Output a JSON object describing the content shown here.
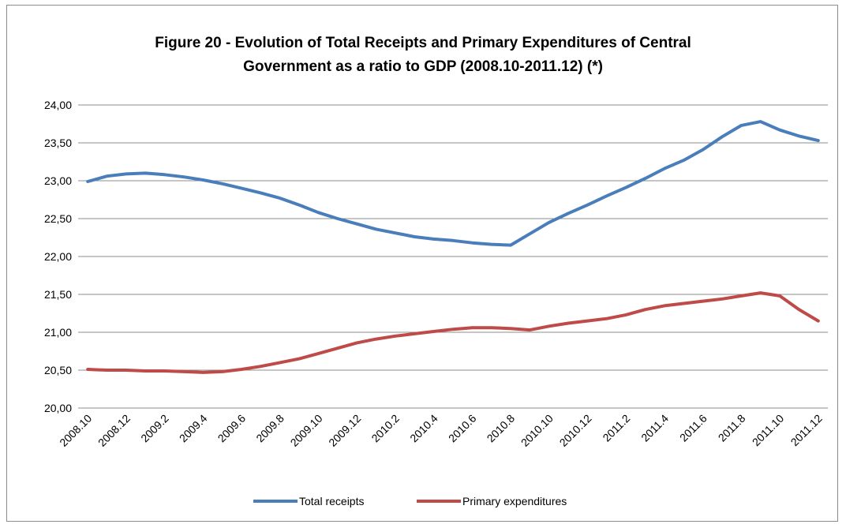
{
  "chart_data": {
    "type": "line",
    "title_lines": [
      "Figure 20 - Evolution of Total Receipts and Primary Expenditures of Central",
      "Government as a ratio to GDP (2008.10-2011.12) (*)"
    ],
    "xlabel": "",
    "ylabel": "",
    "ylim": [
      20,
      24
    ],
    "y_ticks": [
      "20,00",
      "20,50",
      "21,00",
      "21,50",
      "22,00",
      "22,50",
      "23,00",
      "23,50",
      "24,00"
    ],
    "y_tick_values": [
      20,
      20.5,
      21,
      21.5,
      22,
      22.5,
      23,
      23.5,
      24
    ],
    "grid": true,
    "legend_position": "bottom",
    "x_tick_labels": [
      "2008.10",
      "2008.12",
      "2009.2",
      "2009.4",
      "2009.6",
      "2009.8",
      "2009.10",
      "2009.12",
      "2010.2",
      "2010.4",
      "2010.6",
      "2010.8",
      "2010.10",
      "2010.12",
      "2011.2",
      "2011.4",
      "2011.6",
      "2011.8",
      "2011.10",
      "2011.12"
    ],
    "categories": [
      "2008.10",
      "2008.11",
      "2008.12",
      "2009.1",
      "2009.2",
      "2009.3",
      "2009.4",
      "2009.5",
      "2009.6",
      "2009.7",
      "2009.8",
      "2009.9",
      "2009.10",
      "2009.11",
      "2009.12",
      "2010.1",
      "2010.2",
      "2010.3",
      "2010.4",
      "2010.5",
      "2010.6",
      "2010.7",
      "2010.8",
      "2010.9",
      "2010.10",
      "2010.11",
      "2010.12",
      "2011.1",
      "2011.2",
      "2011.3",
      "2011.4",
      "2011.5",
      "2011.6",
      "2011.7",
      "2011.8",
      "2011.9",
      "2011.10",
      "2011.11",
      "2011.12"
    ],
    "series": [
      {
        "name": "Total receipts",
        "color": "#4a7ebb",
        "values": [
          22.99,
          23.06,
          23.09,
          23.1,
          23.08,
          23.05,
          23.01,
          22.96,
          22.9,
          22.84,
          22.77,
          22.68,
          22.58,
          22.5,
          22.43,
          22.36,
          22.31,
          22.26,
          22.23,
          22.21,
          22.18,
          22.16,
          22.15,
          22.3,
          22.45,
          22.57,
          22.68,
          22.8,
          22.91,
          23.03,
          23.16,
          23.27,
          23.41,
          23.58,
          23.73,
          23.78,
          23.67,
          23.59,
          23.53
        ]
      },
      {
        "name": "Primary expenditures",
        "color": "#be4b48",
        "values": [
          20.51,
          20.5,
          20.5,
          20.49,
          20.49,
          20.48,
          20.47,
          20.48,
          20.51,
          20.55,
          20.6,
          20.65,
          20.72,
          20.79,
          20.86,
          20.91,
          20.95,
          20.98,
          21.01,
          21.04,
          21.06,
          21.06,
          21.05,
          21.03,
          21.08,
          21.12,
          21.15,
          21.18,
          21.23,
          21.3,
          21.35,
          21.38,
          21.41,
          21.44,
          21.48,
          21.52,
          21.48,
          21.3,
          21.15
        ]
      }
    ]
  }
}
